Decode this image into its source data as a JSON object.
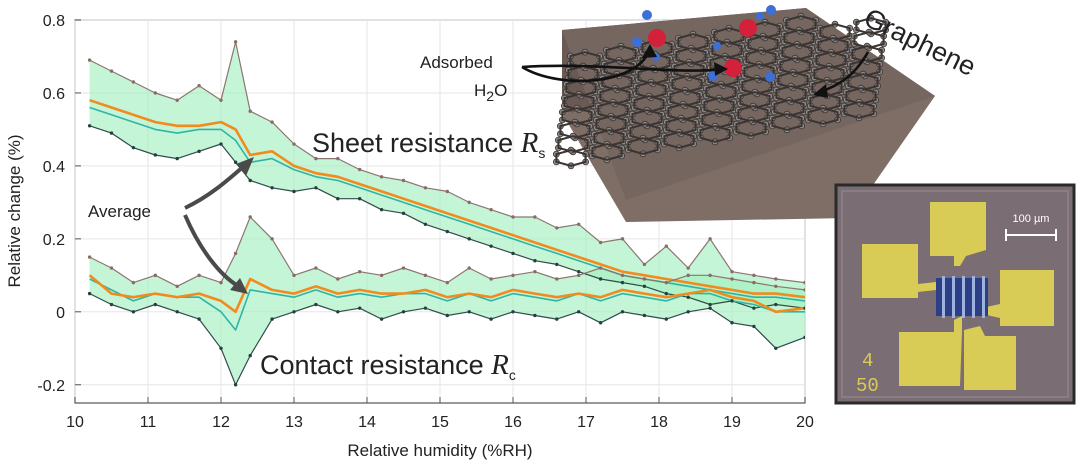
{
  "chart_data": {
    "type": "line",
    "xlabel": "Relative humidity (%RH)",
    "ylabel": "Relative change (%)",
    "xlim": [
      10,
      20
    ],
    "ylim": [
      -0.25,
      0.8
    ],
    "xticks": [
      "10",
      "11",
      "12",
      "13",
      "14",
      "15",
      "16",
      "17",
      "18",
      "19",
      "20"
    ],
    "yticks": [
      "0.8",
      "0.6",
      "0.4",
      "0.2",
      "0",
      "-0.2"
    ],
    "grid": true,
    "x": [
      10.2,
      10.5,
      10.8,
      11.1,
      11.4,
      11.7,
      12.0,
      12.2,
      12.4,
      12.7,
      13.0,
      13.3,
      13.6,
      13.9,
      14.2,
      14.5,
      14.8,
      15.1,
      15.4,
      15.7,
      16.0,
      16.3,
      16.6,
      16.9,
      17.2,
      17.5,
      17.8,
      18.1,
      18.4,
      18.7,
      19.0,
      19.3,
      19.6,
      20.0
    ],
    "sheet": {
      "average": [
        0.58,
        0.56,
        0.54,
        0.52,
        0.51,
        0.51,
        0.52,
        0.5,
        0.43,
        0.44,
        0.4,
        0.38,
        0.37,
        0.35,
        0.33,
        0.31,
        0.29,
        0.27,
        0.25,
        0.23,
        0.21,
        0.19,
        0.17,
        0.15,
        0.13,
        0.11,
        0.1,
        0.09,
        0.08,
        0.07,
        0.06,
        0.05,
        0.05,
        0.04
      ],
      "upper": [
        0.69,
        0.66,
        0.63,
        0.6,
        0.58,
        0.62,
        0.58,
        0.74,
        0.55,
        0.52,
        0.46,
        0.42,
        0.42,
        0.39,
        0.37,
        0.36,
        0.34,
        0.33,
        0.3,
        0.28,
        0.26,
        0.26,
        0.23,
        0.24,
        0.19,
        0.2,
        0.13,
        0.18,
        0.12,
        0.2,
        0.11,
        0.1,
        0.09,
        0.08
      ],
      "lower": [
        0.51,
        0.49,
        0.45,
        0.43,
        0.42,
        0.44,
        0.46,
        0.41,
        0.36,
        0.34,
        0.33,
        0.34,
        0.31,
        0.31,
        0.28,
        0.27,
        0.24,
        0.22,
        0.2,
        0.18,
        0.16,
        0.14,
        0.13,
        0.11,
        0.09,
        0.08,
        0.07,
        0.05,
        0.04,
        0.02,
        0.03,
        0.01,
        0.02,
        0.01
      ],
      "mid": [
        0.56,
        0.54,
        0.52,
        0.5,
        0.49,
        0.5,
        0.5,
        0.47,
        0.41,
        0.42,
        0.39,
        0.37,
        0.36,
        0.34,
        0.32,
        0.3,
        0.28,
        0.26,
        0.24,
        0.22,
        0.2,
        0.18,
        0.16,
        0.14,
        0.12,
        0.1,
        0.09,
        0.08,
        0.07,
        0.06,
        0.05,
        0.04,
        0.04,
        0.03
      ]
    },
    "contact": {
      "average": [
        0.1,
        0.05,
        0.04,
        0.05,
        0.04,
        0.05,
        0.03,
        0.0,
        0.09,
        0.06,
        0.05,
        0.07,
        0.05,
        0.06,
        0.05,
        0.05,
        0.06,
        0.04,
        0.05,
        0.04,
        0.06,
        0.05,
        0.04,
        0.05,
        0.04,
        0.06,
        0.05,
        0.04,
        0.05,
        0.06,
        0.04,
        0.03,
        0.0,
        0.01
      ],
      "upper": [
        0.15,
        0.12,
        0.08,
        0.1,
        0.07,
        0.1,
        0.08,
        0.16,
        0.26,
        0.2,
        0.1,
        0.12,
        0.09,
        0.11,
        0.1,
        0.12,
        0.1,
        0.08,
        0.12,
        0.09,
        0.1,
        0.11,
        0.09,
        0.1,
        0.12,
        0.1,
        0.09,
        0.08,
        0.1,
        0.1,
        0.09,
        0.08,
        0.07,
        0.06
      ],
      "lower": [
        0.05,
        0.02,
        0.0,
        0.02,
        0.0,
        -0.02,
        -0.1,
        -0.2,
        -0.12,
        -0.02,
        0.0,
        0.02,
        0.0,
        0.01,
        -0.02,
        0.0,
        0.01,
        -0.01,
        0.0,
        -0.02,
        0.0,
        -0.01,
        -0.02,
        0.0,
        -0.03,
        0.0,
        -0.01,
        -0.02,
        0.0,
        0.01,
        -0.03,
        -0.04,
        -0.1,
        -0.07
      ],
      "mid": [
        0.09,
        0.06,
        0.03,
        0.05,
        0.04,
        0.04,
        0.0,
        -0.05,
        0.06,
        0.05,
        0.04,
        0.06,
        0.04,
        0.05,
        0.04,
        0.05,
        0.05,
        0.03,
        0.05,
        0.03,
        0.05,
        0.04,
        0.03,
        0.05,
        0.03,
        0.05,
        0.04,
        0.03,
        0.05,
        0.05,
        0.03,
        0.02,
        0.0,
        0.0
      ]
    },
    "colors": {
      "band": "#a5f0c0",
      "avg": "#f28a1e",
      "mid": "#2fb5a6",
      "env": "#8c7672",
      "frame": "#555555"
    }
  },
  "annotations": {
    "sheet_label": "Sheet resistance ",
    "sheet_symbol": "R",
    "sheet_sub": "s",
    "contact_label": "Contact resistance ",
    "contact_symbol": "R",
    "contact_sub": "c",
    "average": "Average",
    "adsorbed": "Adsorbed",
    "h2o_h": "H",
    "h2o_2": "2",
    "h2o_o": "O",
    "graphene": "Graphene"
  },
  "micrograph": {
    "scale_bar": "100 µm",
    "id_top": "4",
    "id_bottom": "50"
  }
}
